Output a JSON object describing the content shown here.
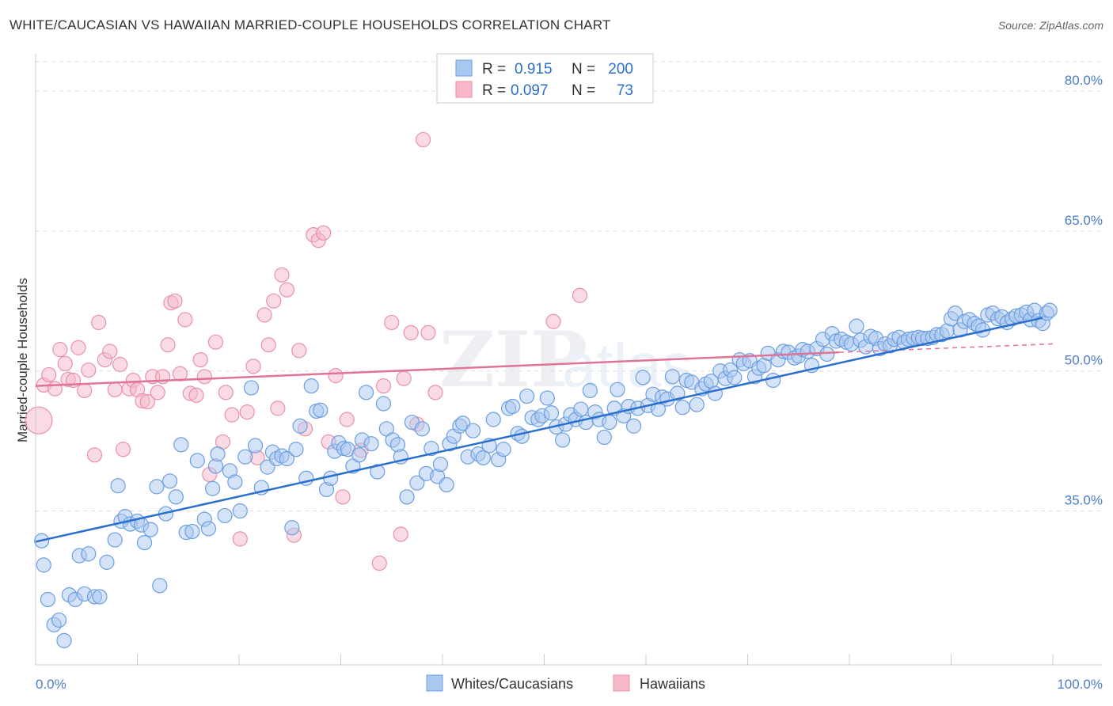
{
  "header": {
    "title": "WHITE/CAUCASIAN VS HAWAIIAN MARRIED-COUPLE HOUSEHOLDS CORRELATION CHART",
    "source": "Source: ZipAtlas.com"
  },
  "watermark": {
    "zip": "ZIP",
    "atlas": "atlas"
  },
  "legend_top": {
    "rows": [
      {
        "r_label": "R =",
        "r_value": "0.915",
        "n_label": "N =",
        "n_value": "200"
      },
      {
        "r_label": "R =",
        "r_value": "0.097",
        "n_label": "N =",
        "n_value": "73"
      }
    ]
  },
  "legend_bottom": {
    "items": [
      "Whites/Caucasians",
      "Hawaiians"
    ]
  },
  "colors": {
    "blue_fill": "#a9c8f0",
    "blue_stroke": "#6d9ee0",
    "blue_line": "#2a6fce",
    "pink_fill": "#f6b7c9",
    "pink_stroke": "#e891ab",
    "pink_line": "#e07497",
    "tick_text": "#4a7cc7",
    "grid": "#dddddd"
  },
  "chart_data": {
    "type": "scatter",
    "title": "WHITE/CAUCASIAN VS HAWAIIAN MARRIED-COUPLE HOUSEHOLDS CORRELATION CHART",
    "xlabel": "",
    "ylabel": "Married-couple Households",
    "xlim": [
      0,
      100
    ],
    "ylim": [
      18.5,
      84
    ],
    "x_tick_labels": [
      "0.0%",
      "100.0%"
    ],
    "y_ticks": [
      35,
      50,
      65,
      80
    ],
    "y_tick_labels": [
      "35.0%",
      "50.0%",
      "65.0%",
      "80.0%"
    ],
    "grid": true,
    "legend_position": "top-center",
    "series": [
      {
        "name": "Whites/Caucasians",
        "r": 0.915,
        "n": 200,
        "trend": {
          "x": [
            0,
            99
          ],
          "y": [
            31.7,
            55.7
          ]
        },
        "points": [
          [
            0.6,
            31.8
          ],
          [
            0.8,
            29.2
          ],
          [
            1.2,
            25.5
          ],
          [
            1.8,
            22.8
          ],
          [
            2.3,
            23.3
          ],
          [
            2.8,
            21.1
          ],
          [
            3.3,
            26.0
          ],
          [
            3.9,
            25.5
          ],
          [
            4.3,
            30.2
          ],
          [
            4.8,
            26.1
          ],
          [
            5.2,
            30.4
          ],
          [
            5.8,
            25.8
          ],
          [
            6.3,
            25.8
          ],
          [
            7.0,
            29.5
          ],
          [
            7.8,
            31.9
          ],
          [
            8.1,
            37.7
          ],
          [
            8.4,
            33.9
          ],
          [
            8.8,
            34.4
          ],
          [
            9.3,
            33.6
          ],
          [
            10.0,
            33.9
          ],
          [
            10.4,
            33.5
          ],
          [
            10.7,
            31.6
          ],
          [
            11.3,
            33.0
          ],
          [
            11.9,
            37.6
          ],
          [
            12.2,
            27.0
          ],
          [
            12.8,
            34.7
          ],
          [
            13.2,
            38.2
          ],
          [
            13.8,
            36.5
          ],
          [
            14.3,
            42.1
          ],
          [
            14.8,
            32.7
          ],
          [
            15.4,
            32.8
          ],
          [
            15.9,
            40.4
          ],
          [
            16.6,
            34.1
          ],
          [
            17.0,
            33.1
          ],
          [
            17.4,
            37.4
          ],
          [
            17.7,
            39.8
          ],
          [
            17.9,
            41.1
          ],
          [
            18.6,
            34.5
          ],
          [
            19.1,
            39.3
          ],
          [
            19.6,
            38.1
          ],
          [
            20.1,
            35.0
          ],
          [
            20.6,
            40.8
          ],
          [
            21.2,
            48.2
          ],
          [
            21.6,
            42.0
          ],
          [
            22.2,
            37.5
          ],
          [
            22.8,
            39.7
          ],
          [
            23.3,
            41.3
          ],
          [
            23.7,
            40.6
          ],
          [
            24.2,
            40.9
          ],
          [
            24.7,
            40.6
          ],
          [
            25.2,
            33.2
          ],
          [
            25.6,
            41.6
          ],
          [
            26.0,
            44.1
          ],
          [
            26.6,
            38.5
          ],
          [
            27.1,
            48.4
          ],
          [
            27.6,
            45.7
          ],
          [
            28.0,
            45.8
          ],
          [
            28.6,
            37.3
          ],
          [
            29.0,
            38.5
          ],
          [
            29.4,
            41.4
          ],
          [
            29.8,
            42.3
          ],
          [
            30.3,
            41.7
          ],
          [
            30.7,
            41.6
          ],
          [
            31.2,
            39.8
          ],
          [
            31.8,
            41.0
          ],
          [
            32.1,
            42.6
          ],
          [
            32.5,
            47.7
          ],
          [
            33.0,
            42.2
          ],
          [
            33.6,
            39.2
          ],
          [
            34.2,
            46.5
          ],
          [
            34.5,
            43.8
          ],
          [
            35.1,
            42.6
          ],
          [
            35.6,
            42.1
          ],
          [
            35.9,
            40.8
          ],
          [
            36.5,
            36.5
          ],
          [
            37.0,
            44.5
          ],
          [
            37.5,
            38.0
          ],
          [
            38.0,
            43.8
          ],
          [
            38.4,
            39.0
          ],
          [
            38.9,
            41.7
          ],
          [
            39.5,
            38.7
          ],
          [
            39.8,
            40.0
          ],
          [
            40.4,
            37.8
          ],
          [
            40.7,
            42.2
          ],
          [
            41.1,
            43.0
          ],
          [
            41.7,
            44.1
          ],
          [
            42.0,
            44.4
          ],
          [
            42.5,
            40.8
          ],
          [
            43.0,
            43.6
          ],
          [
            43.5,
            41.1
          ],
          [
            44.0,
            40.7
          ],
          [
            44.6,
            42.0
          ],
          [
            45.0,
            44.8
          ],
          [
            45.5,
            40.5
          ],
          [
            46.0,
            41.6
          ],
          [
            46.5,
            46.0
          ],
          [
            46.9,
            46.2
          ],
          [
            47.4,
            43.3
          ],
          [
            47.8,
            43.0
          ],
          [
            48.3,
            47.3
          ],
          [
            48.8,
            45.0
          ],
          [
            49.4,
            44.8
          ],
          [
            49.8,
            45.2
          ],
          [
            50.3,
            47.1
          ],
          [
            50.7,
            45.5
          ],
          [
            51.2,
            44.0
          ],
          [
            51.8,
            42.6
          ],
          [
            52.1,
            44.3
          ],
          [
            52.6,
            45.3
          ],
          [
            53.1,
            44.8
          ],
          [
            53.6,
            45.9
          ],
          [
            54.1,
            44.5
          ],
          [
            54.5,
            47.9
          ],
          [
            55.0,
            45.6
          ],
          [
            55.4,
            44.8
          ],
          [
            55.9,
            42.9
          ],
          [
            56.4,
            44.5
          ],
          [
            56.9,
            46.0
          ],
          [
            57.2,
            48.0
          ],
          [
            57.8,
            45.2
          ],
          [
            58.3,
            46.2
          ],
          [
            58.8,
            44.1
          ],
          [
            59.2,
            46.0
          ],
          [
            59.7,
            49.3
          ],
          [
            60.2,
            46.3
          ],
          [
            60.7,
            47.5
          ],
          [
            61.2,
            45.9
          ],
          [
            61.6,
            47.2
          ],
          [
            62.1,
            47.0
          ],
          [
            62.6,
            49.4
          ],
          [
            63.1,
            47.6
          ],
          [
            63.6,
            46.1
          ],
          [
            64.0,
            49.0
          ],
          [
            64.5,
            48.8
          ],
          [
            65.0,
            46.4
          ],
          [
            65.5,
            48.1
          ],
          [
            65.9,
            48.6
          ],
          [
            66.4,
            48.9
          ],
          [
            66.8,
            47.6
          ],
          [
            67.3,
            50.0
          ],
          [
            67.8,
            49.2
          ],
          [
            68.3,
            50.1
          ],
          [
            68.7,
            49.3
          ],
          [
            69.2,
            51.2
          ],
          [
            69.6,
            50.8
          ],
          [
            70.2,
            51.1
          ],
          [
            70.7,
            49.4
          ],
          [
            71.1,
            50.3
          ],
          [
            71.6,
            50.6
          ],
          [
            72.0,
            51.9
          ],
          [
            72.5,
            49.0
          ],
          [
            73.0,
            51.2
          ],
          [
            73.5,
            52.1
          ],
          [
            74.0,
            52.0
          ],
          [
            74.6,
            51.4
          ],
          [
            75.0,
            51.6
          ],
          [
            75.4,
            52.3
          ],
          [
            75.9,
            52.1
          ],
          [
            76.3,
            50.6
          ],
          [
            76.8,
            52.4
          ],
          [
            77.4,
            53.4
          ],
          [
            77.8,
            51.8
          ],
          [
            78.3,
            54.0
          ],
          [
            78.7,
            53.2
          ],
          [
            79.2,
            53.4
          ],
          [
            79.7,
            53.1
          ],
          [
            80.2,
            52.9
          ],
          [
            80.7,
            54.8
          ],
          [
            81.1,
            53.3
          ],
          [
            81.6,
            52.6
          ],
          [
            82.1,
            53.7
          ],
          [
            82.6,
            53.5
          ],
          [
            83.0,
            52.4
          ],
          [
            83.5,
            52.9
          ],
          [
            84.0,
            52.7
          ],
          [
            84.4,
            53.4
          ],
          [
            84.9,
            53.6
          ],
          [
            85.4,
            53.1
          ],
          [
            85.8,
            53.4
          ],
          [
            86.3,
            53.5
          ],
          [
            86.8,
            53.6
          ],
          [
            87.2,
            53.5
          ],
          [
            87.7,
            53.5
          ],
          [
            88.2,
            53.6
          ],
          [
            88.6,
            53.9
          ],
          [
            89.1,
            53.9
          ],
          [
            89.6,
            54.3
          ],
          [
            90.0,
            55.6
          ],
          [
            90.4,
            56.2
          ],
          [
            90.9,
            54.4
          ],
          [
            91.3,
            55.3
          ],
          [
            91.8,
            55.5
          ],
          [
            92.3,
            55.1
          ],
          [
            92.7,
            54.8
          ],
          [
            93.1,
            54.4
          ],
          [
            93.6,
            56.0
          ],
          [
            94.1,
            56.2
          ],
          [
            94.6,
            55.6
          ],
          [
            95.0,
            55.8
          ],
          [
            95.5,
            55.2
          ],
          [
            96.0,
            55.6
          ],
          [
            96.4,
            55.9
          ],
          [
            96.9,
            56.0
          ],
          [
            97.4,
            56.3
          ],
          [
            97.8,
            55.5
          ],
          [
            98.2,
            56.5
          ],
          [
            98.6,
            55.4
          ],
          [
            99.0,
            55.1
          ],
          [
            99.4,
            56.2
          ],
          [
            99.7,
            56.5
          ]
        ]
      },
      {
        "name": "Hawaiians",
        "r": 0.097,
        "n": 73,
        "trend": {
          "x": [
            0,
            79
          ],
          "y": [
            48.4,
            52.0
          ]
        },
        "dashed_extension": {
          "x": [
            79,
            100
          ],
          "y": [
            52.0,
            52.9
          ]
        },
        "points": [
          [
            0.3,
            44.7
          ],
          [
            0.8,
            48.5
          ],
          [
            1.3,
            49.6
          ],
          [
            1.9,
            48.1
          ],
          [
            2.4,
            52.3
          ],
          [
            2.9,
            50.8
          ],
          [
            3.2,
            49.1
          ],
          [
            3.7,
            49.0
          ],
          [
            4.2,
            52.5
          ],
          [
            4.8,
            47.9
          ],
          [
            5.2,
            50.1
          ],
          [
            5.8,
            41.0
          ],
          [
            6.2,
            55.2
          ],
          [
            6.8,
            51.2
          ],
          [
            7.3,
            52.1
          ],
          [
            7.8,
            48.0
          ],
          [
            8.3,
            50.7
          ],
          [
            8.6,
            41.6
          ],
          [
            9.2,
            48.1
          ],
          [
            9.6,
            49.0
          ],
          [
            10.0,
            48.0
          ],
          [
            10.5,
            46.8
          ],
          [
            11.0,
            46.7
          ],
          [
            11.5,
            49.4
          ],
          [
            12.0,
            47.7
          ],
          [
            12.5,
            49.4
          ],
          [
            13.0,
            52.8
          ],
          [
            13.3,
            57.3
          ],
          [
            13.7,
            57.5
          ],
          [
            14.2,
            49.7
          ],
          [
            14.7,
            55.5
          ],
          [
            15.2,
            47.6
          ],
          [
            15.8,
            47.4
          ],
          [
            16.2,
            51.2
          ],
          [
            16.6,
            49.4
          ],
          [
            17.1,
            38.9
          ],
          [
            17.7,
            53.1
          ],
          [
            18.4,
            42.4
          ],
          [
            18.7,
            47.7
          ],
          [
            19.3,
            45.3
          ],
          [
            20.1,
            32.0
          ],
          [
            20.8,
            45.6
          ],
          [
            21.4,
            50.5
          ],
          [
            21.8,
            40.7
          ],
          [
            22.5,
            56.0
          ],
          [
            22.9,
            52.8
          ],
          [
            23.4,
            57.5
          ],
          [
            23.8,
            46.0
          ],
          [
            24.2,
            60.3
          ],
          [
            24.7,
            58.7
          ],
          [
            25.4,
            32.4
          ],
          [
            25.9,
            52.2
          ],
          [
            26.5,
            43.8
          ],
          [
            27.3,
            64.6
          ],
          [
            27.8,
            64.0
          ],
          [
            28.3,
            64.8
          ],
          [
            28.8,
            42.4
          ],
          [
            29.5,
            49.5
          ],
          [
            30.2,
            36.5
          ],
          [
            30.6,
            44.8
          ],
          [
            32.0,
            41.5
          ],
          [
            33.8,
            29.4
          ],
          [
            34.2,
            48.4
          ],
          [
            35.0,
            55.2
          ],
          [
            35.9,
            32.5
          ],
          [
            36.2,
            49.2
          ],
          [
            36.9,
            54.1
          ],
          [
            37.5,
            44.3
          ],
          [
            38.1,
            74.8
          ],
          [
            38.6,
            54.1
          ],
          [
            39.3,
            47.7
          ],
          [
            50.9,
            55.3
          ],
          [
            53.5,
            58.1
          ]
        ]
      }
    ]
  }
}
